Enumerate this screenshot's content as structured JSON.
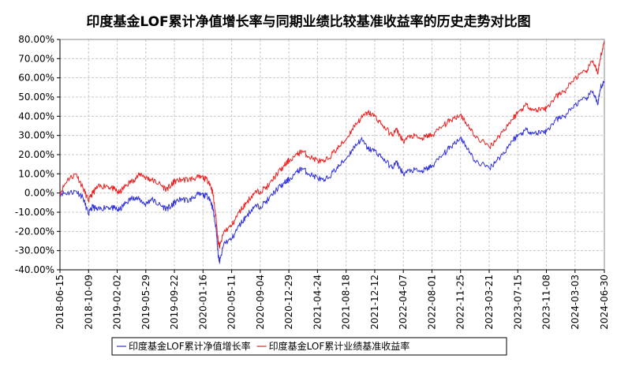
{
  "chart_data": {
    "type": "line",
    "title": "印度基金LOF累计净值增长率与同期业绩比较基准收益率的历史走势对比图",
    "xlabel": "",
    "ylabel": "",
    "ylim": [
      -40,
      80
    ],
    "yticks": [
      "80.00%",
      "70.00%",
      "60.00%",
      "50.00%",
      "40.00%",
      "30.00%",
      "20.00%",
      "10.00%",
      "0.00%",
      "-10.00%",
      "-20.00%",
      "-30.00%",
      "-40.00%"
    ],
    "ytick_values": [
      80,
      70,
      60,
      50,
      40,
      30,
      20,
      10,
      0,
      -10,
      -20,
      -30,
      -40
    ],
    "xticks": [
      "2018-06-15",
      "2018-10-09",
      "2019-02-02",
      "2019-05-29",
      "2019-09-22",
      "2020-01-16",
      "2020-05-11",
      "2020-09-04",
      "2020-12-29",
      "2021-04-24",
      "2021-08-18",
      "2021-12-12",
      "2022-04-07",
      "2022-08-01",
      "2022-11-25",
      "2023-03-21",
      "2023-07-15",
      "2023-11-08",
      "2024-03-03",
      "2024-06-30"
    ],
    "grid": true,
    "legend_position": "bottom",
    "series": [
      {
        "name": "印度基金LOF累计净值增长率",
        "color": "#3333dd",
        "x": [
          "2018-06-15",
          "2018-07-15",
          "2018-08-20",
          "2018-09-15",
          "2018-10-09",
          "2018-10-25",
          "2018-11-15",
          "2018-12-20",
          "2019-01-20",
          "2019-02-10",
          "2019-03-10",
          "2019-04-10",
          "2019-05-10",
          "2019-05-29",
          "2019-06-20",
          "2019-07-20",
          "2019-08-20",
          "2019-09-10",
          "2019-09-22",
          "2019-10-20",
          "2019-11-20",
          "2019-12-20",
          "2020-01-16",
          "2020-02-10",
          "2020-02-25",
          "2020-03-10",
          "2020-03-18",
          "2020-03-24",
          "2020-04-10",
          "2020-05-11",
          "2020-06-10",
          "2020-07-10",
          "2020-08-10",
          "2020-09-04",
          "2020-10-10",
          "2020-11-10",
          "2020-12-10",
          "2020-12-29",
          "2021-02-01",
          "2021-02-20",
          "2021-03-20",
          "2021-04-24",
          "2021-05-20",
          "2021-06-20",
          "2021-07-20",
          "2021-08-18",
          "2021-09-20",
          "2021-10-18",
          "2021-11-15",
          "2021-12-12",
          "2022-01-15",
          "2022-02-20",
          "2022-03-10",
          "2022-04-07",
          "2022-05-10",
          "2022-06-20",
          "2022-07-15",
          "2022-08-01",
          "2022-09-15",
          "2022-10-15",
          "2022-11-25",
          "2022-12-15",
          "2023-01-20",
          "2023-03-21",
          "2023-04-20",
          "2023-05-20",
          "2023-06-20",
          "2023-07-15",
          "2023-08-20",
          "2023-09-20",
          "2023-10-25",
          "2023-11-08",
          "2023-12-15",
          "2024-01-20",
          "2024-03-03",
          "2024-04-15",
          "2024-05-15",
          "2024-06-04",
          "2024-06-15",
          "2024-06-30"
        ],
        "values": [
          0,
          0,
          1,
          -2,
          -11,
          -7,
          -9,
          -7,
          -8,
          -9,
          -5,
          -2,
          -4,
          -6,
          -3,
          -6,
          -8,
          -7,
          -5,
          -3,
          -4,
          -1,
          -1,
          -2,
          -8,
          -20,
          -33,
          -36,
          -26,
          -24,
          -17,
          -12,
          -7,
          -7,
          -3,
          2,
          5,
          7,
          11,
          13,
          10,
          8,
          6,
          10,
          14,
          18,
          24,
          28,
          23,
          22,
          18,
          13,
          16,
          10,
          12,
          11,
          13,
          14,
          20,
          24,
          29,
          25,
          17,
          13,
          17,
          21,
          27,
          30,
          33,
          31,
          32,
          32,
          38,
          40,
          46,
          49,
          53,
          46,
          55,
          58
        ]
      },
      {
        "name": "印度基金LOF累计业绩基准收益率",
        "color": "#ee2222",
        "x": [
          "2018-06-15",
          "2018-07-15",
          "2018-08-20",
          "2018-09-15",
          "2018-10-09",
          "2018-10-25",
          "2018-11-15",
          "2018-12-20",
          "2019-01-20",
          "2019-02-10",
          "2019-03-10",
          "2019-04-10",
          "2019-05-10",
          "2019-05-29",
          "2019-06-20",
          "2019-07-20",
          "2019-08-20",
          "2019-09-10",
          "2019-09-22",
          "2019-10-20",
          "2019-11-20",
          "2019-12-20",
          "2020-01-16",
          "2020-02-10",
          "2020-02-25",
          "2020-03-10",
          "2020-03-18",
          "2020-03-24",
          "2020-04-10",
          "2020-05-11",
          "2020-06-10",
          "2020-07-10",
          "2020-08-10",
          "2020-09-04",
          "2020-10-10",
          "2020-11-10",
          "2020-12-10",
          "2020-12-29",
          "2021-02-01",
          "2021-02-20",
          "2021-03-20",
          "2021-04-24",
          "2021-05-20",
          "2021-06-20",
          "2021-07-20",
          "2021-08-18",
          "2021-09-20",
          "2021-10-18",
          "2021-11-15",
          "2021-12-12",
          "2022-01-15",
          "2022-02-20",
          "2022-03-10",
          "2022-04-07",
          "2022-05-10",
          "2022-06-20",
          "2022-07-15",
          "2022-08-01",
          "2022-09-15",
          "2022-10-15",
          "2022-11-25",
          "2022-12-15",
          "2023-01-20",
          "2023-03-21",
          "2023-04-20",
          "2023-05-20",
          "2023-06-20",
          "2023-07-15",
          "2023-08-20",
          "2023-09-20",
          "2023-10-25",
          "2023-11-08",
          "2023-12-15",
          "2024-01-20",
          "2024-03-03",
          "2024-04-15",
          "2024-05-15",
          "2024-06-04",
          "2024-06-15",
          "2024-06-30"
        ],
        "values": [
          0,
          7,
          10,
          3,
          -4,
          0,
          3,
          4,
          2,
          0,
          4,
          7,
          10,
          8,
          7,
          5,
          2,
          4,
          6,
          7,
          7,
          8,
          8,
          6,
          0,
          -15,
          -26,
          -28,
          -20,
          -17,
          -10,
          -5,
          0,
          1,
          4,
          10,
          14,
          17,
          20,
          22,
          19,
          17,
          16,
          20,
          24,
          28,
          35,
          39,
          42,
          40,
          35,
          30,
          33,
          27,
          30,
          28,
          30,
          30,
          35,
          38,
          41,
          37,
          30,
          24,
          28,
          33,
          38,
          42,
          46,
          43,
          44,
          44,
          50,
          53,
          60,
          63,
          69,
          62,
          71,
          79
        ]
      }
    ]
  }
}
